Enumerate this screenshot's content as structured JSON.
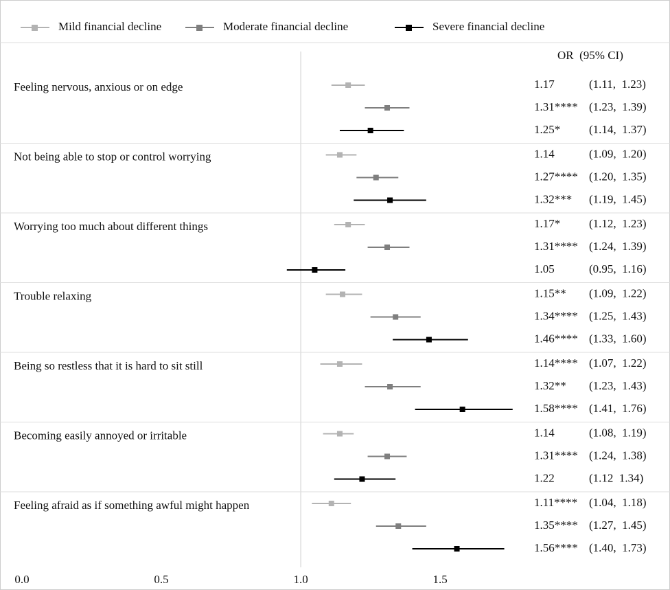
{
  "chart_data": {
    "type": "forest",
    "column_header": "OR  (95% CI)",
    "categories": [
      "Feeling nervous, anxious or on edge",
      "Not being able to stop or control worrying",
      "Worrying too much about different things",
      "Trouble relaxing",
      "Being so restless that it is hard to sit still",
      "Becoming easily annoyed or irritable",
      "Feeling afraid as if something awful might happen"
    ],
    "series": [
      {
        "name": "Mild financial decline",
        "color": "#b3b3b3",
        "values": [
          1.17,
          1.14,
          1.17,
          1.15,
          1.14,
          1.14,
          1.11
        ],
        "lower": [
          1.11,
          1.09,
          1.12,
          1.09,
          1.07,
          1.08,
          1.04
        ],
        "upper": [
          1.23,
          1.2,
          1.23,
          1.22,
          1.22,
          1.19,
          1.18
        ],
        "value_labels": [
          "1.17",
          "1.14",
          "1.17*",
          "1.15**",
          "1.14****",
          "1.14",
          "1.11****"
        ],
        "ci_labels": [
          "(1.11,  1.23)",
          "(1.09,  1.20)",
          "(1.12,  1.23)",
          "(1.09,  1.22)",
          "(1.07,  1.22)",
          "(1.08,  1.19)",
          "(1.04,  1.18)"
        ]
      },
      {
        "name": "Moderate financial decline",
        "color": "#7f7f7f",
        "values": [
          1.31,
          1.27,
          1.31,
          1.34,
          1.32,
          1.31,
          1.35
        ],
        "lower": [
          1.23,
          1.2,
          1.24,
          1.25,
          1.23,
          1.24,
          1.27
        ],
        "upper": [
          1.39,
          1.35,
          1.39,
          1.43,
          1.43,
          1.38,
          1.45
        ],
        "value_labels": [
          "1.31****",
          "1.27****",
          "1.31****",
          "1.34****",
          "1.32**",
          "1.31****",
          "1.35****"
        ],
        "ci_labels": [
          "(1.23,  1.39)",
          "(1.20,  1.35)",
          "(1.24,  1.39)",
          "(1.25,  1.43)",
          "(1.23,  1.43)",
          "(1.24,  1.38)",
          "(1.27,  1.45)"
        ]
      },
      {
        "name": "Severe financial decline",
        "color": "#000000",
        "values": [
          1.25,
          1.32,
          1.05,
          1.46,
          1.58,
          1.22,
          1.56
        ],
        "lower": [
          1.14,
          1.19,
          0.95,
          1.33,
          1.41,
          1.12,
          1.4
        ],
        "upper": [
          1.37,
          1.45,
          1.16,
          1.6,
          1.76,
          1.34,
          1.73
        ],
        "value_labels": [
          "1.25*",
          "1.32***",
          "1.05",
          "1.46****",
          "1.58****",
          "1.22",
          "1.56****"
        ],
        "ci_labels": [
          "(1.14,  1.37)",
          "(1.19,  1.45)",
          "(0.95,  1.16)",
          "(1.33,  1.60)",
          "(1.41,  1.76)",
          "(1.12  1.34)",
          "(1.40,  1.73)"
        ]
      }
    ],
    "xlim": [
      0,
      1.8
    ],
    "xticks": [
      {
        "value": 0,
        "label": "0.0"
      },
      0.5,
      {
        "value": 1,
        "label": "1.0"
      },
      1.5
    ],
    "reference_line": 1
  }
}
